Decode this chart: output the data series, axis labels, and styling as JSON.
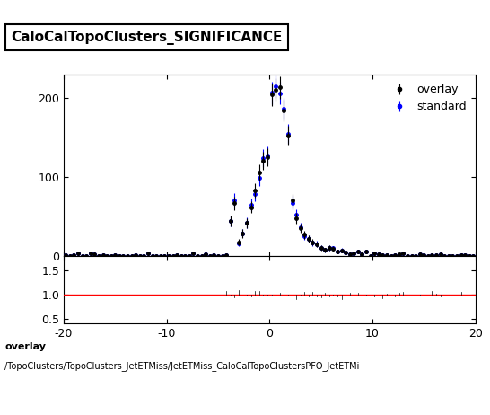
{
  "title": "CaloCalTopoClusters_SIGNIFICANCE",
  "legend_entries": [
    "overlay",
    "standard"
  ],
  "overlay_color": "#000000",
  "standard_color": "#0000ff",
  "xlim": [
    -20,
    20
  ],
  "main_ylim": [
    0,
    230
  ],
  "ratio_ylim": [
    0.4,
    1.8
  ],
  "ratio_yticks": [
    0.5,
    1.0,
    1.5
  ],
  "main_yticks": [
    0,
    100,
    200
  ],
  "bottom_label1": "overlay",
  "bottom_label2": "/TopoClusters/TopoClusters_JetETMiss/JetETMiss_CaloCalTopoClustersPFO_JetETMi",
  "xlabel": "",
  "ratio_line_color": "#ff0000"
}
